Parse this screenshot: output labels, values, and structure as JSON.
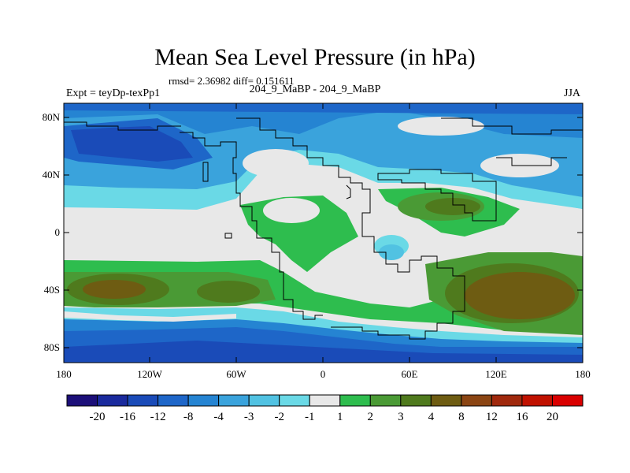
{
  "header": {
    "title": "Mean Sea Level Pressure (in hPa)",
    "stats": "rmsd= 2.36982 diff= 0.151611",
    "experiment": "Expt = teyDp-texPp1",
    "comparison": "204_9_MaBP - 204_9_MaBP",
    "season": "JJA"
  },
  "map": {
    "x_ticks": [
      "180",
      "120W",
      "60W",
      "0",
      "60E",
      "120E",
      "180"
    ],
    "y_ticks": [
      "80N",
      "40N",
      "0",
      "40S",
      "80S"
    ],
    "projection": "cylindrical equidistant, global"
  },
  "colorbar": {
    "labels": [
      "-20",
      "-16",
      "-12",
      "-8",
      "-4",
      "-3",
      "-2",
      "-1",
      "1",
      "2",
      "3",
      "4",
      "8",
      "12",
      "16",
      "20"
    ],
    "colors": [
      "#1c0f79",
      "#1a2a9d",
      "#1a4bb8",
      "#1e66c8",
      "#2584d2",
      "#3aa3dc",
      "#51c2e2",
      "#6ad9e6",
      "#e8e8e8",
      "#2ebd4e",
      "#4a9a35",
      "#4f7a1d",
      "#6e5c12",
      "#8b4513",
      "#a0290d",
      "#c01100",
      "#d90000"
    ]
  }
}
